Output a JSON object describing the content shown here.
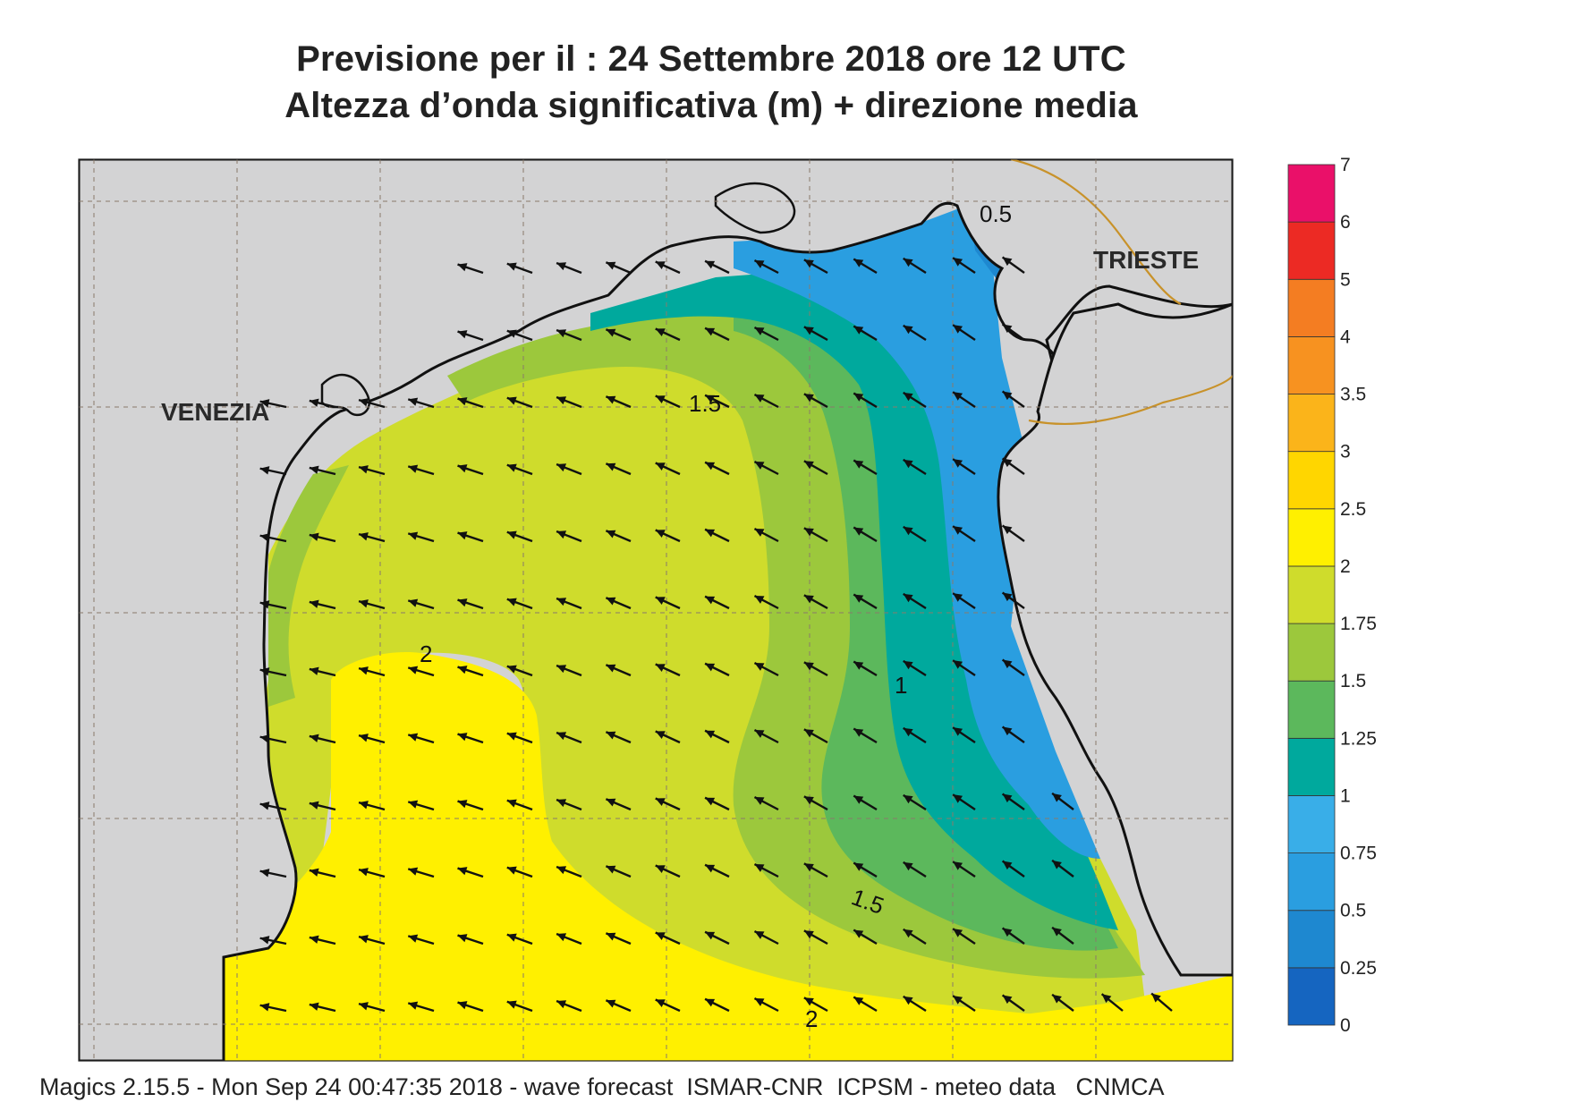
{
  "title_line1": "Previsione per il  :  24 Settembre 2018   ore 12 UTC",
  "title_line2": "Altezza d’onda significativa (m) + direzione media",
  "cities": {
    "venezia": "VENEZIA",
    "trieste": "TRIESTE"
  },
  "contour_labels": [
    "0.5",
    "1.5",
    "2",
    "1",
    "1.5",
    "2"
  ],
  "colorbar": {
    "labels": [
      "0",
      "0.25",
      "0.5",
      "0.75",
      "1",
      "1.25",
      "1.5",
      "1.75",
      "2",
      "2.5",
      "3",
      "3.5",
      "4",
      "5",
      "6",
      "7"
    ],
    "colors": [
      "#1565c0",
      "#1e88d0",
      "#2a9ee0",
      "#39aee8",
      "#00a99d",
      "#5cb85c",
      "#9cc83c",
      "#cfdc2c",
      "#fff000",
      "#ffd600",
      "#fbb41a",
      "#f79220",
      "#f47d22",
      "#ec2a24",
      "#ea1069"
    ]
  },
  "colors": {
    "land": "#d3d3d4",
    "sea_high": "#fff000",
    "sea_mid": "#cfdc2c",
    "sea_green": "#9cc83c",
    "sea_teal": "#00a99d",
    "sea_blue": "#2a9ee0",
    "border_line": "#c8922a"
  },
  "footer": "Magics 2.15.5 - Mon Sep 24 00:47:35 2018 - wave forecast  ISMAR-CNR  ICPSM - meteo data   CNMCA"
}
